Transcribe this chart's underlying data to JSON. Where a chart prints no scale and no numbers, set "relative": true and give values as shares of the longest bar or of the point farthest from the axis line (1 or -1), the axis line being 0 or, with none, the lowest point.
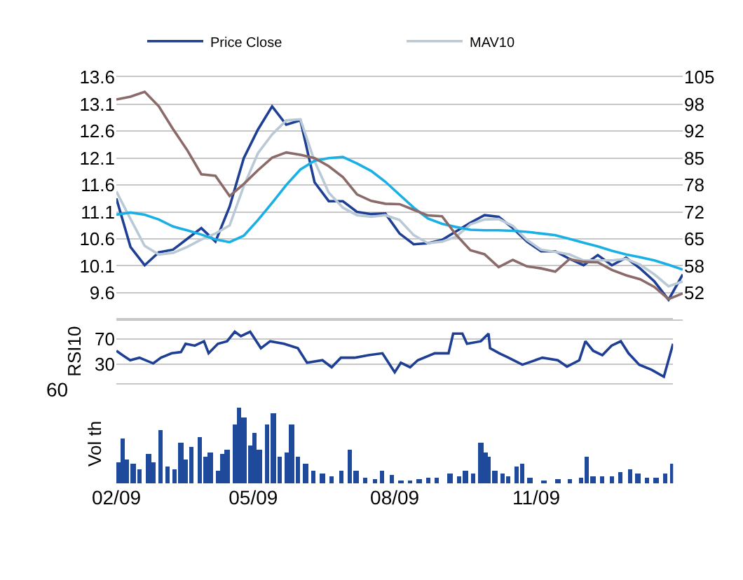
{
  "chart_data": [
    {
      "type": "line",
      "categories": [
        null,
        null,
        null,
        null,
        null,
        null,
        null,
        null,
        null,
        null,
        null,
        null,
        null,
        null,
        null,
        null,
        null,
        null,
        null,
        null,
        null,
        null,
        null,
        null,
        null,
        null,
        null,
        null,
        null,
        null,
        null,
        null,
        null,
        null,
        null,
        null,
        null,
        null,
        null,
        null,
        null
      ],
      "ylim": [
        9.1,
        13.6
      ],
      "yticks": [
        9.6,
        10.1,
        10.6,
        11.1,
        11.6,
        12.1,
        12.6,
        13.1,
        13.6
      ],
      "y2lim": [
        45,
        105
      ],
      "y2ticks": [
        {
          "value": 51.67,
          "label": "52"
        },
        {
          "value": 58.33,
          "label": "58"
        },
        {
          "value": 65,
          "label": "65"
        },
        {
          "value": 71.67,
          "label": "72"
        },
        {
          "value": 78.33,
          "label": "78"
        },
        {
          "value": 85,
          "label": "85"
        },
        {
          "value": 91.67,
          "label": "92"
        },
        {
          "value": 98.33,
          "label": "98"
        },
        {
          "value": 105,
          "label": "105"
        }
      ],
      "grid": "y",
      "legend": "top",
      "tick_labels": "y",
      "series": [
        {
          "name": "Price Close",
          "color": "#1e3f94",
          "values": [
            11.35,
            10.45,
            10.11,
            10.35,
            10.4,
            10.6,
            10.8,
            10.55,
            11.2,
            12.1,
            12.63,
            13.06,
            12.72,
            12.8,
            11.65,
            11.3,
            11.3,
            11.1,
            11.06,
            11.07,
            10.7,
            10.5,
            10.52,
            10.58,
            10.74,
            10.9,
            11.04,
            11.01,
            10.8,
            10.55,
            10.37,
            10.37,
            10.23,
            10.11,
            10.3,
            10.11,
            10.25,
            10.05,
            9.81,
            9.47,
            9.94
          ]
        },
        {
          "name": "MAV10",
          "color": "#b9c9d6",
          "values": [
            11.48,
            10.97,
            10.47,
            10.31,
            10.34,
            10.45,
            10.59,
            10.7,
            10.85,
            11.58,
            12.19,
            12.54,
            12.8,
            12.82,
            12.04,
            11.46,
            11.18,
            11.04,
            11.01,
            11.04,
            10.95,
            10.67,
            10.52,
            10.55,
            10.64,
            10.87,
            10.96,
            10.97,
            10.84,
            10.58,
            10.4,
            10.36,
            10.31,
            10.2,
            10.2,
            10.2,
            10.23,
            10.12,
            9.94,
            9.72,
            9.81
          ]
        },
        {
          "color": "#8b6a6a",
          "axis": "y2",
          "values": [
            99.5,
            100.2,
            101.4,
            97.8,
            92.2,
            87,
            81,
            80.6,
            75.6,
            78.6,
            82,
            85.1,
            86.4,
            85.8,
            85,
            83,
            80.3,
            76,
            74.4,
            73.7,
            73.6,
            72.2,
            70.8,
            70.6,
            66,
            62.2,
            61.2,
            58,
            59.8,
            58.2,
            57.7,
            56.9,
            60,
            59.3,
            59.2,
            57.3,
            56,
            55,
            53.1,
            50.1,
            51.5
          ]
        },
        {
          "color": "#1ab0e6",
          "values": [
            11.05,
            11.09,
            11.05,
            10.96,
            10.83,
            10.76,
            10.68,
            10.59,
            10.54,
            10.66,
            10.95,
            11.27,
            11.6,
            11.89,
            12.05,
            12.1,
            12.12,
            12,
            11.86,
            11.66,
            11.42,
            11.18,
            10.98,
            10.88,
            10.82,
            10.77,
            10.76,
            10.76,
            10.75,
            10.73,
            10.7,
            10.67,
            10.6,
            10.53,
            10.46,
            10.38,
            10.31,
            10.26,
            10.2,
            10.12,
            10.03
          ]
        }
      ]
    },
    {
      "type": "line",
      "xlim": [
        "2009-02-01",
        "2010-01-29"
      ],
      "ylim": [
        0,
        100
      ],
      "yticks": [
        30,
        70
      ],
      "grid": "y",
      "tick_labels": "y",
      "ylabel": "RSI10",
      "series": [
        {
          "color": "#1e3f94",
          "x": [
            "2009-02-01",
            "2009-02-05",
            "2009-02-10",
            "2009-02-16",
            "2009-02-25",
            "2009-03-02",
            "2009-03-09",
            "2009-03-15",
            "2009-03-18",
            "2009-03-24",
            "2009-03-30",
            "2009-04-02",
            "2009-04-08",
            "2009-04-14",
            "2009-04-19",
            "2009-04-23",
            "2009-04-29",
            "2009-05-06",
            "2009-05-12",
            "2009-05-21",
            "2009-05-30",
            "2009-06-05",
            "2009-06-15",
            "2009-06-21",
            "2009-06-27",
            "2009-07-06",
            "2009-07-15",
            "2009-07-24",
            "2009-08-01",
            "2009-08-05",
            "2009-08-11",
            "2009-08-16",
            "2009-08-27",
            "2009-09-05",
            "2009-09-08",
            "2009-09-14",
            "2009-09-17",
            "2009-09-26",
            "2009-10-01",
            "2009-10-02",
            "2009-10-08",
            "2009-10-14",
            "2009-10-23",
            "2009-11-05",
            "2009-11-15",
            "2009-11-21",
            "2009-11-29",
            "2009-12-03",
            "2009-12-08",
            "2009-12-14",
            "2009-12-20",
            "2009-12-26",
            "2009-12-31",
            "2010-01-07",
            "2010-01-15",
            "2010-01-23",
            "2010-01-29"
          ],
          "values": [
            51,
            44,
            36,
            40,
            31,
            40,
            47,
            49,
            62,
            59,
            66,
            47,
            62,
            66,
            81,
            74,
            81,
            55,
            66,
            62,
            55,
            32,
            36,
            25,
            40,
            40,
            44,
            47,
            17,
            32,
            25,
            36,
            47,
            47,
            78,
            78,
            62,
            66,
            78,
            55,
            47,
            40,
            29,
            40,
            36,
            26,
            36,
            66,
            51,
            44,
            59,
            66,
            47,
            29,
            21,
            10,
            62
          ]
        }
      ]
    },
    {
      "type": "bar",
      "relative": true,
      "xlim": [
        "2009-02-01",
        "2010-01-29"
      ],
      "xticks": [
        {
          "value": "2009-02-01",
          "label": "02/09"
        },
        {
          "value": "2009-05-01",
          "label": "05/09"
        },
        {
          "value": "2009-08-01",
          "label": "08/09"
        },
        {
          "value": "2009-11-01",
          "label": "11/09"
        }
      ],
      "tick_labels": "x",
      "ylabel": "Vol th",
      "annotations": [
        "60"
      ],
      "color": "#1f4a9c",
      "x": [
        "2009-02-02",
        "2009-02-05",
        "2009-02-08",
        "2009-02-12",
        "2009-02-16",
        "2009-02-22",
        "2009-02-25",
        "2009-03-02",
        "2009-03-06",
        "2009-03-11",
        "2009-03-15",
        "2009-03-18",
        "2009-03-22",
        "2009-03-27",
        "2009-03-31",
        "2009-04-03",
        "2009-04-08",
        "2009-04-11",
        "2009-04-14",
        "2009-04-19",
        "2009-04-22",
        "2009-04-25",
        "2009-04-29",
        "2009-05-02",
        "2009-05-05",
        "2009-05-10",
        "2009-05-14",
        "2009-05-18",
        "2009-05-23",
        "2009-05-26",
        "2009-05-30",
        "2009-06-04",
        "2009-06-09",
        "2009-06-15",
        "2009-06-21",
        "2009-06-27",
        "2009-07-03",
        "2009-07-07",
        "2009-07-13",
        "2009-07-19",
        "2009-07-24",
        "2009-07-30",
        "2009-08-05",
        "2009-08-11",
        "2009-08-17",
        "2009-08-23",
        "2009-08-28",
        "2009-09-06",
        "2009-09-12",
        "2009-09-16",
        "2009-09-21",
        "2009-09-26",
        "2009-09-29",
        "2009-10-01",
        "2009-10-05",
        "2009-10-10",
        "2009-10-14",
        "2009-10-19",
        "2009-10-23",
        "2009-10-28",
        "2009-11-06",
        "2009-11-15",
        "2009-11-23",
        "2009-11-30",
        "2009-12-04",
        "2009-12-08",
        "2009-12-14",
        "2009-12-20",
        "2009-12-26",
        "2010-01-01",
        "2010-01-06",
        "2010-01-12",
        "2010-01-18",
        "2010-01-24",
        "2010-01-29"
      ],
      "values": [
        0.28,
        0.59,
        0.32,
        0.25,
        0.19,
        0.38,
        0.28,
        0.71,
        0.22,
        0.19,
        0.53,
        0.32,
        0.48,
        0.61,
        0.35,
        0.41,
        0.16,
        0.38,
        0.45,
        0.77,
        1,
        0.86,
        0.5,
        0.66,
        0.44,
        0.77,
        0.92,
        0.36,
        0.41,
        0.78,
        0.35,
        0.25,
        0.16,
        0.13,
        0.1,
        0.16,
        0.45,
        0.16,
        0.07,
        0.06,
        0.16,
        0.12,
        0.04,
        0.04,
        0.06,
        0.07,
        0.08,
        0.13,
        0.1,
        0.16,
        0.13,
        0.53,
        0.41,
        0.35,
        0.16,
        0.13,
        0.1,
        0.22,
        0.25,
        0.07,
        0.04,
        0.06,
        0.06,
        0.07,
        0.36,
        0.1,
        0.1,
        0.1,
        0.15,
        0.18,
        0.13,
        0.07,
        0.08,
        0.13,
        0.25
      ]
    }
  ]
}
